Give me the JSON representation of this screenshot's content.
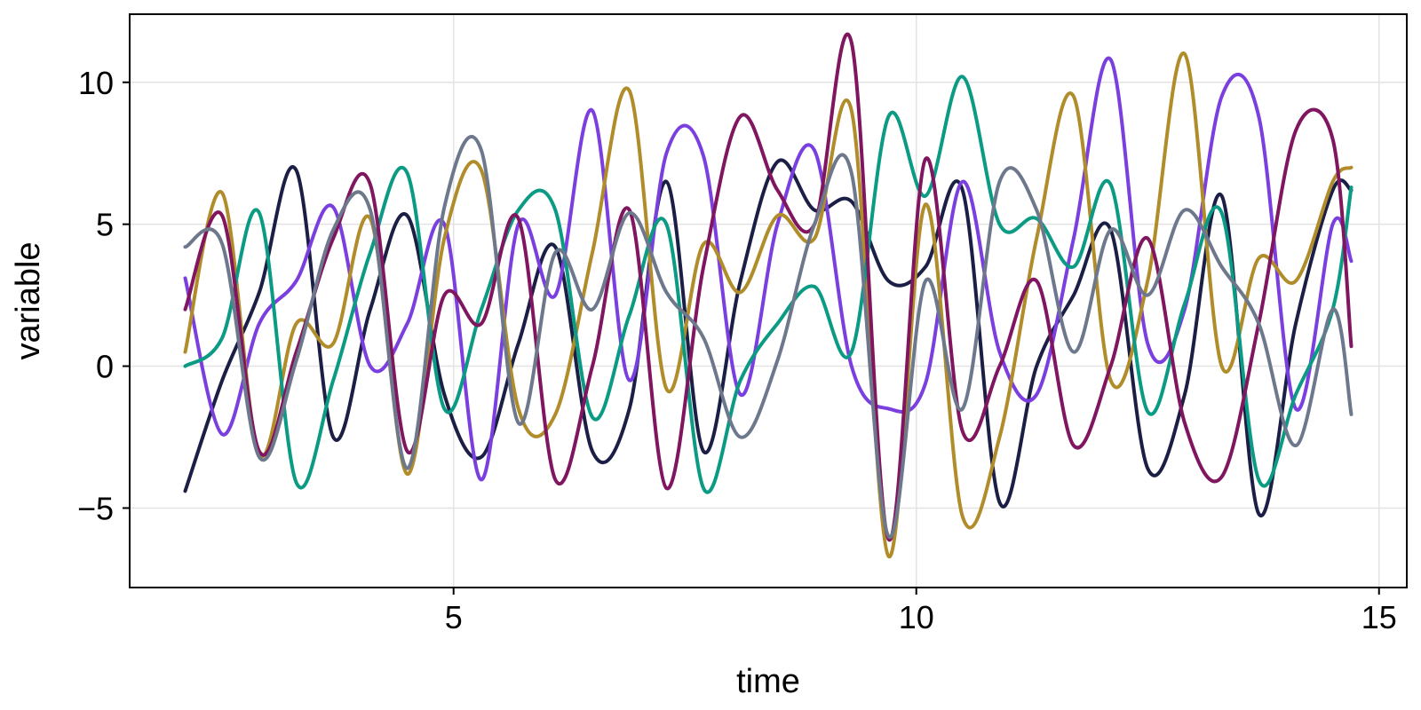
{
  "chart_data": {
    "type": "line",
    "title": "",
    "xlabel": "time",
    "ylabel": "variable",
    "xlim": [
      1.5,
      15.3
    ],
    "ylim": [
      -7.8,
      12.4
    ],
    "xticks": [
      5,
      10,
      15
    ],
    "xtick_labels": [
      "5",
      "10",
      "15"
    ],
    "yticks": [
      -5,
      0,
      5,
      10
    ],
    "ytick_labels": [
      "−5",
      "0",
      "5",
      "10"
    ],
    "grid": true,
    "legend": "none",
    "x": [
      2.1,
      2.5,
      2.9,
      3.3,
      3.7,
      4.1,
      4.5,
      4.9,
      5.3,
      5.7,
      6.1,
      6.5,
      6.9,
      7.3,
      7.7,
      8.1,
      8.5,
      8.9,
      9.3,
      9.7,
      10.1,
      10.5,
      10.9,
      11.3,
      11.7,
      12.1,
      12.5,
      12.9,
      13.3,
      13.7,
      14.1,
      14.5,
      14.7
    ],
    "series": [
      {
        "color": "#1b1f45",
        "values": [
          -4.4,
          -0.5,
          2.6,
          6.9,
          -2.5,
          2.0,
          5.3,
          -1.0,
          -3.2,
          0.8,
          4.2,
          -3.0,
          -1.5,
          6.5,
          -3.0,
          3.0,
          7.2,
          5.5,
          5.8,
          3.0,
          3.5,
          6.2,
          -4.8,
          0.0,
          2.5,
          4.8,
          -3.6,
          -1.0,
          6.0,
          -5.2,
          1.5,
          6.2,
          6.2
        ]
      },
      {
        "color": "#7b3fe0",
        "values": [
          3.1,
          -2.4,
          1.5,
          3.0,
          5.6,
          0.0,
          1.5,
          5.0,
          -4.0,
          5.0,
          2.5,
          9.0,
          -0.5,
          7.5,
          7.4,
          -1.0,
          5.0,
          7.6,
          0.0,
          -1.5,
          -0.6,
          6.5,
          0.5,
          -1.0,
          4.5,
          10.8,
          0.8,
          2.0,
          9.5,
          8.8,
          -1.5,
          5.0,
          3.7
        ]
      },
      {
        "color": "#b08d2a",
        "values": [
          0.5,
          6.1,
          -3.1,
          1.5,
          0.8,
          5.2,
          -3.8,
          4.5,
          6.9,
          -1.5,
          -1.7,
          4.0,
          9.7,
          -0.8,
          4.3,
          2.6,
          5.3,
          4.5,
          9.0,
          -6.7,
          5.7,
          -5.3,
          -2.5,
          4.5,
          9.5,
          -0.5,
          3.0,
          11.0,
          0.0,
          3.8,
          3.0,
          6.5,
          7.0
        ]
      },
      {
        "color": "#0b9b84",
        "values": [
          0.0,
          1.0,
          5.4,
          -4.1,
          -0.5,
          4.0,
          6.8,
          -1.5,
          2.0,
          5.5,
          5.5,
          -1.8,
          1.8,
          5.0,
          -4.3,
          -0.5,
          1.5,
          2.8,
          0.5,
          8.8,
          6.0,
          10.2,
          5.0,
          5.2,
          3.5,
          6.4,
          -1.6,
          2.2,
          5.4,
          -4.0,
          -1.0,
          2.0,
          6.3
        ]
      },
      {
        "color": "#801560",
        "values": [
          2.0,
          5.3,
          -3.0,
          0.5,
          4.5,
          6.4,
          -3.0,
          2.5,
          1.5,
          5.2,
          -4.0,
          0.0,
          5.5,
          -4.3,
          3.5,
          8.8,
          6.2,
          5.0,
          11.4,
          -6.1,
          7.3,
          -2.3,
          0.0,
          3.0,
          -2.8,
          0.0,
          4.5,
          -2.0,
          -3.9,
          1.5,
          8.3,
          8.0,
          0.7
        ]
      },
      {
        "color": "#6e788c",
        "values": [
          4.2,
          4.3,
          -3.2,
          0.2,
          4.8,
          5.5,
          -3.6,
          5.6,
          7.6,
          -2.0,
          4.0,
          2.0,
          5.4,
          2.6,
          1.0,
          -2.5,
          0.2,
          5.0,
          6.8,
          -6.0,
          3.0,
          -1.5,
          6.5,
          5.5,
          0.5,
          4.8,
          2.5,
          5.5,
          3.5,
          1.5,
          -2.8,
          2.0,
          -1.7
        ]
      }
    ]
  }
}
